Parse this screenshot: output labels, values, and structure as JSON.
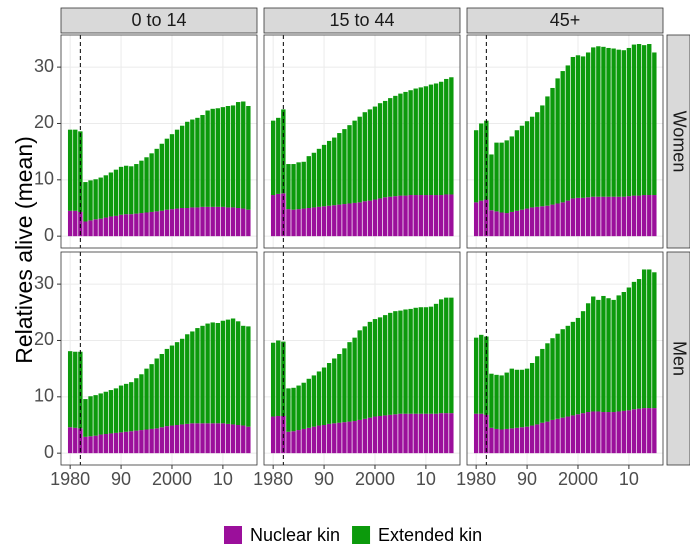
{
  "chart_data": {
    "type": "bar",
    "stacked": true,
    "y_label": "Relatives alive (mean)",
    "facet_columns": [
      "0 to 14",
      "15 to 44",
      "45+"
    ],
    "facet_rows": [
      "Women",
      "Men"
    ],
    "x": [
      1980,
      1981,
      1982,
      1983,
      1984,
      1985,
      1986,
      1987,
      1988,
      1989,
      1990,
      1991,
      1992,
      1993,
      1994,
      1995,
      1996,
      1997,
      1998,
      1999,
      2000,
      2001,
      2002,
      2003,
      2004,
      2005,
      2006,
      2007,
      2008,
      2009,
      2010,
      2011,
      2012,
      2013,
      2014,
      2015
    ],
    "xlim": [
      1978.2,
      2016.7
    ],
    "xticks": [
      1980,
      {
        "value": 1990,
        "label": "90"
      },
      2000,
      {
        "value": 2010,
        "label": "10"
      }
    ],
    "ylim": [
      -2.1,
      35.7
    ],
    "yticks": [
      0,
      10,
      20,
      30
    ],
    "vline": 1982,
    "grid": true,
    "legend_position": "bottom",
    "series": [
      {
        "name": "Nuclear kin",
        "color": "#9b0f9b"
      },
      {
        "name": "Extended kin",
        "color": "#0c9a0c"
      }
    ],
    "panels": [
      [
        {
          "series": [
            {
              "values": [
                4.5,
                4.5,
                4.3,
                2.6,
                2.8,
                3.0,
                3.1,
                3.3,
                3.5,
                3.6,
                3.8,
                3.9,
                3.9,
                4.0,
                4.1,
                4.2,
                4.3,
                4.4,
                4.5,
                4.7,
                4.8,
                4.9,
                5.0,
                5.0,
                5.1,
                5.1,
                5.2,
                5.2,
                5.2,
                5.2,
                5.2,
                5.1,
                5.1,
                5.0,
                4.9,
                4.7
              ]
            },
            {
              "values": [
                14.4,
                14.4,
                14.3,
                7.0,
                7.1,
                7.1,
                7.3,
                7.5,
                7.8,
                8.2,
                8.5,
                8.6,
                8.5,
                8.8,
                9.3,
                9.8,
                10.4,
                11.1,
                11.9,
                12.6,
                13.3,
                14.0,
                14.6,
                15.3,
                15.6,
                15.9,
                16.3,
                17.1,
                17.4,
                17.5,
                17.7,
                18.0,
                18.1,
                18.8,
                19.0,
                18.4
              ]
            }
          ]
        },
        {
          "series": [
            {
              "values": [
                7.3,
                7.5,
                7.6,
                4.8,
                4.7,
                4.8,
                4.9,
                5.0,
                5.1,
                5.2,
                5.3,
                5.4,
                5.5,
                5.6,
                5.7,
                5.8,
                5.9,
                6.0,
                6.2,
                6.3,
                6.5,
                6.7,
                6.9,
                7.0,
                7.1,
                7.2,
                7.2,
                7.3,
                7.3,
                7.3,
                7.3,
                7.3,
                7.3,
                7.3,
                7.4,
                7.4
              ]
            },
            {
              "values": [
                13.2,
                13.5,
                14.9,
                8.0,
                8.1,
                8.3,
                8.3,
                9.2,
                9.7,
                10.3,
                10.9,
                11.5,
                12.0,
                12.7,
                13.3,
                13.9,
                14.6,
                15.2,
                15.8,
                16.2,
                16.5,
                16.9,
                17.1,
                17.5,
                17.8,
                18.1,
                18.4,
                18.6,
                18.9,
                19.1,
                19.3,
                19.6,
                19.8,
                20.1,
                20.5,
                20.8
              ]
            }
          ]
        },
        {
          "series": [
            {
              "values": [
                6.0,
                6.3,
                6.5,
                4.6,
                4.4,
                4.2,
                4.1,
                4.3,
                4.5,
                4.7,
                4.9,
                5.1,
                5.2,
                5.3,
                5.4,
                5.6,
                5.8,
                6.0,
                6.3,
                6.7,
                6.8,
                6.8,
                6.9,
                7.0,
                7.0,
                7.0,
                7.0,
                7.0,
                7.0,
                7.0,
                7.1,
                7.2,
                7.2,
                7.3,
                7.3,
                7.3
              ]
            },
            {
              "values": [
                12.8,
                13.7,
                14.0,
                9.9,
                12.2,
                12.4,
                12.9,
                13.4,
                14.3,
                14.9,
                15.5,
                16.1,
                16.8,
                17.9,
                19.4,
                20.7,
                22.2,
                23.3,
                24.0,
                25.1,
                25.3,
                25.1,
                25.7,
                26.5,
                26.7,
                26.6,
                26.4,
                26.3,
                26.1,
                26.0,
                26.3,
                26.8,
                26.9,
                26.6,
                26.8,
                25.3
              ]
            }
          ]
        }
      ],
      [
        {
          "series": [
            {
              "values": [
                4.6,
                4.5,
                4.4,
                2.9,
                3.0,
                3.1,
                3.3,
                3.4,
                3.5,
                3.6,
                3.7,
                3.8,
                3.9,
                4.0,
                4.1,
                4.2,
                4.3,
                4.4,
                4.6,
                4.8,
                4.9,
                5.0,
                5.1,
                5.2,
                5.3,
                5.3,
                5.3,
                5.3,
                5.3,
                5.3,
                5.3,
                5.2,
                5.1,
                5.0,
                4.9,
                4.7
              ]
            },
            {
              "values": [
                13.5,
                13.5,
                13.6,
                6.7,
                7.1,
                7.2,
                7.3,
                7.5,
                7.7,
                7.9,
                8.3,
                8.5,
                8.7,
                9.3,
                9.9,
                10.8,
                11.5,
                12.4,
                13.0,
                13.7,
                14.2,
                14.7,
                15.2,
                15.9,
                16.3,
                16.9,
                17.3,
                17.7,
                17.9,
                17.8,
                18.2,
                18.5,
                18.8,
                18.4,
                17.7,
                17.8
              ]
            }
          ]
        },
        {
          "series": [
            {
              "values": [
                6.5,
                6.6,
                6.6,
                3.8,
                3.9,
                4.1,
                4.3,
                4.5,
                4.7,
                4.9,
                5.0,
                5.2,
                5.3,
                5.4,
                5.5,
                5.6,
                5.7,
                5.9,
                6.1,
                6.3,
                6.5,
                6.6,
                6.7,
                6.8,
                6.9,
                7.0,
                7.0,
                7.0,
                7.0,
                7.0,
                7.0,
                7.0,
                7.0,
                7.1,
                7.1,
                7.1
              ]
            },
            {
              "values": [
                13.1,
                13.4,
                13.2,
                7.7,
                7.7,
                7.9,
                8.2,
                8.7,
                9.1,
                9.6,
                10.2,
                10.8,
                11.5,
                12.2,
                13.1,
                14.1,
                14.8,
                15.9,
                16.4,
                17.0,
                17.3,
                17.5,
                17.8,
                18.1,
                18.3,
                18.3,
                18.5,
                18.6,
                18.8,
                18.9,
                18.9,
                19.0,
                19.5,
                20.2,
                20.5,
                20.5
              ]
            }
          ]
        },
        {
          "series": [
            {
              "values": [
                7.0,
                7.0,
                6.8,
                4.5,
                4.3,
                4.2,
                4.3,
                4.4,
                4.5,
                4.6,
                4.7,
                4.9,
                5.1,
                5.4,
                5.6,
                5.9,
                6.1,
                6.3,
                6.5,
                6.7,
                6.9,
                7.1,
                7.3,
                7.4,
                7.4,
                7.3,
                7.3,
                7.3,
                7.4,
                7.5,
                7.6,
                7.8,
                7.9,
                8.0,
                8.0,
                8.0
              ]
            },
            {
              "values": [
                13.5,
                14.0,
                13.9,
                9.6,
                9.6,
                9.6,
                10.0,
                10.6,
                10.3,
                10.2,
                10.3,
                11.1,
                12.1,
                13.1,
                13.9,
                14.5,
                15.1,
                15.7,
                16.1,
                16.6,
                17.1,
                18.1,
                19.3,
                20.4,
                19.8,
                20.6,
                20.2,
                19.9,
                20.6,
                21.1,
                21.8,
                22.6,
                23.0,
                24.6,
                24.6,
                24.1
              ]
            }
          ]
        }
      ]
    ]
  }
}
